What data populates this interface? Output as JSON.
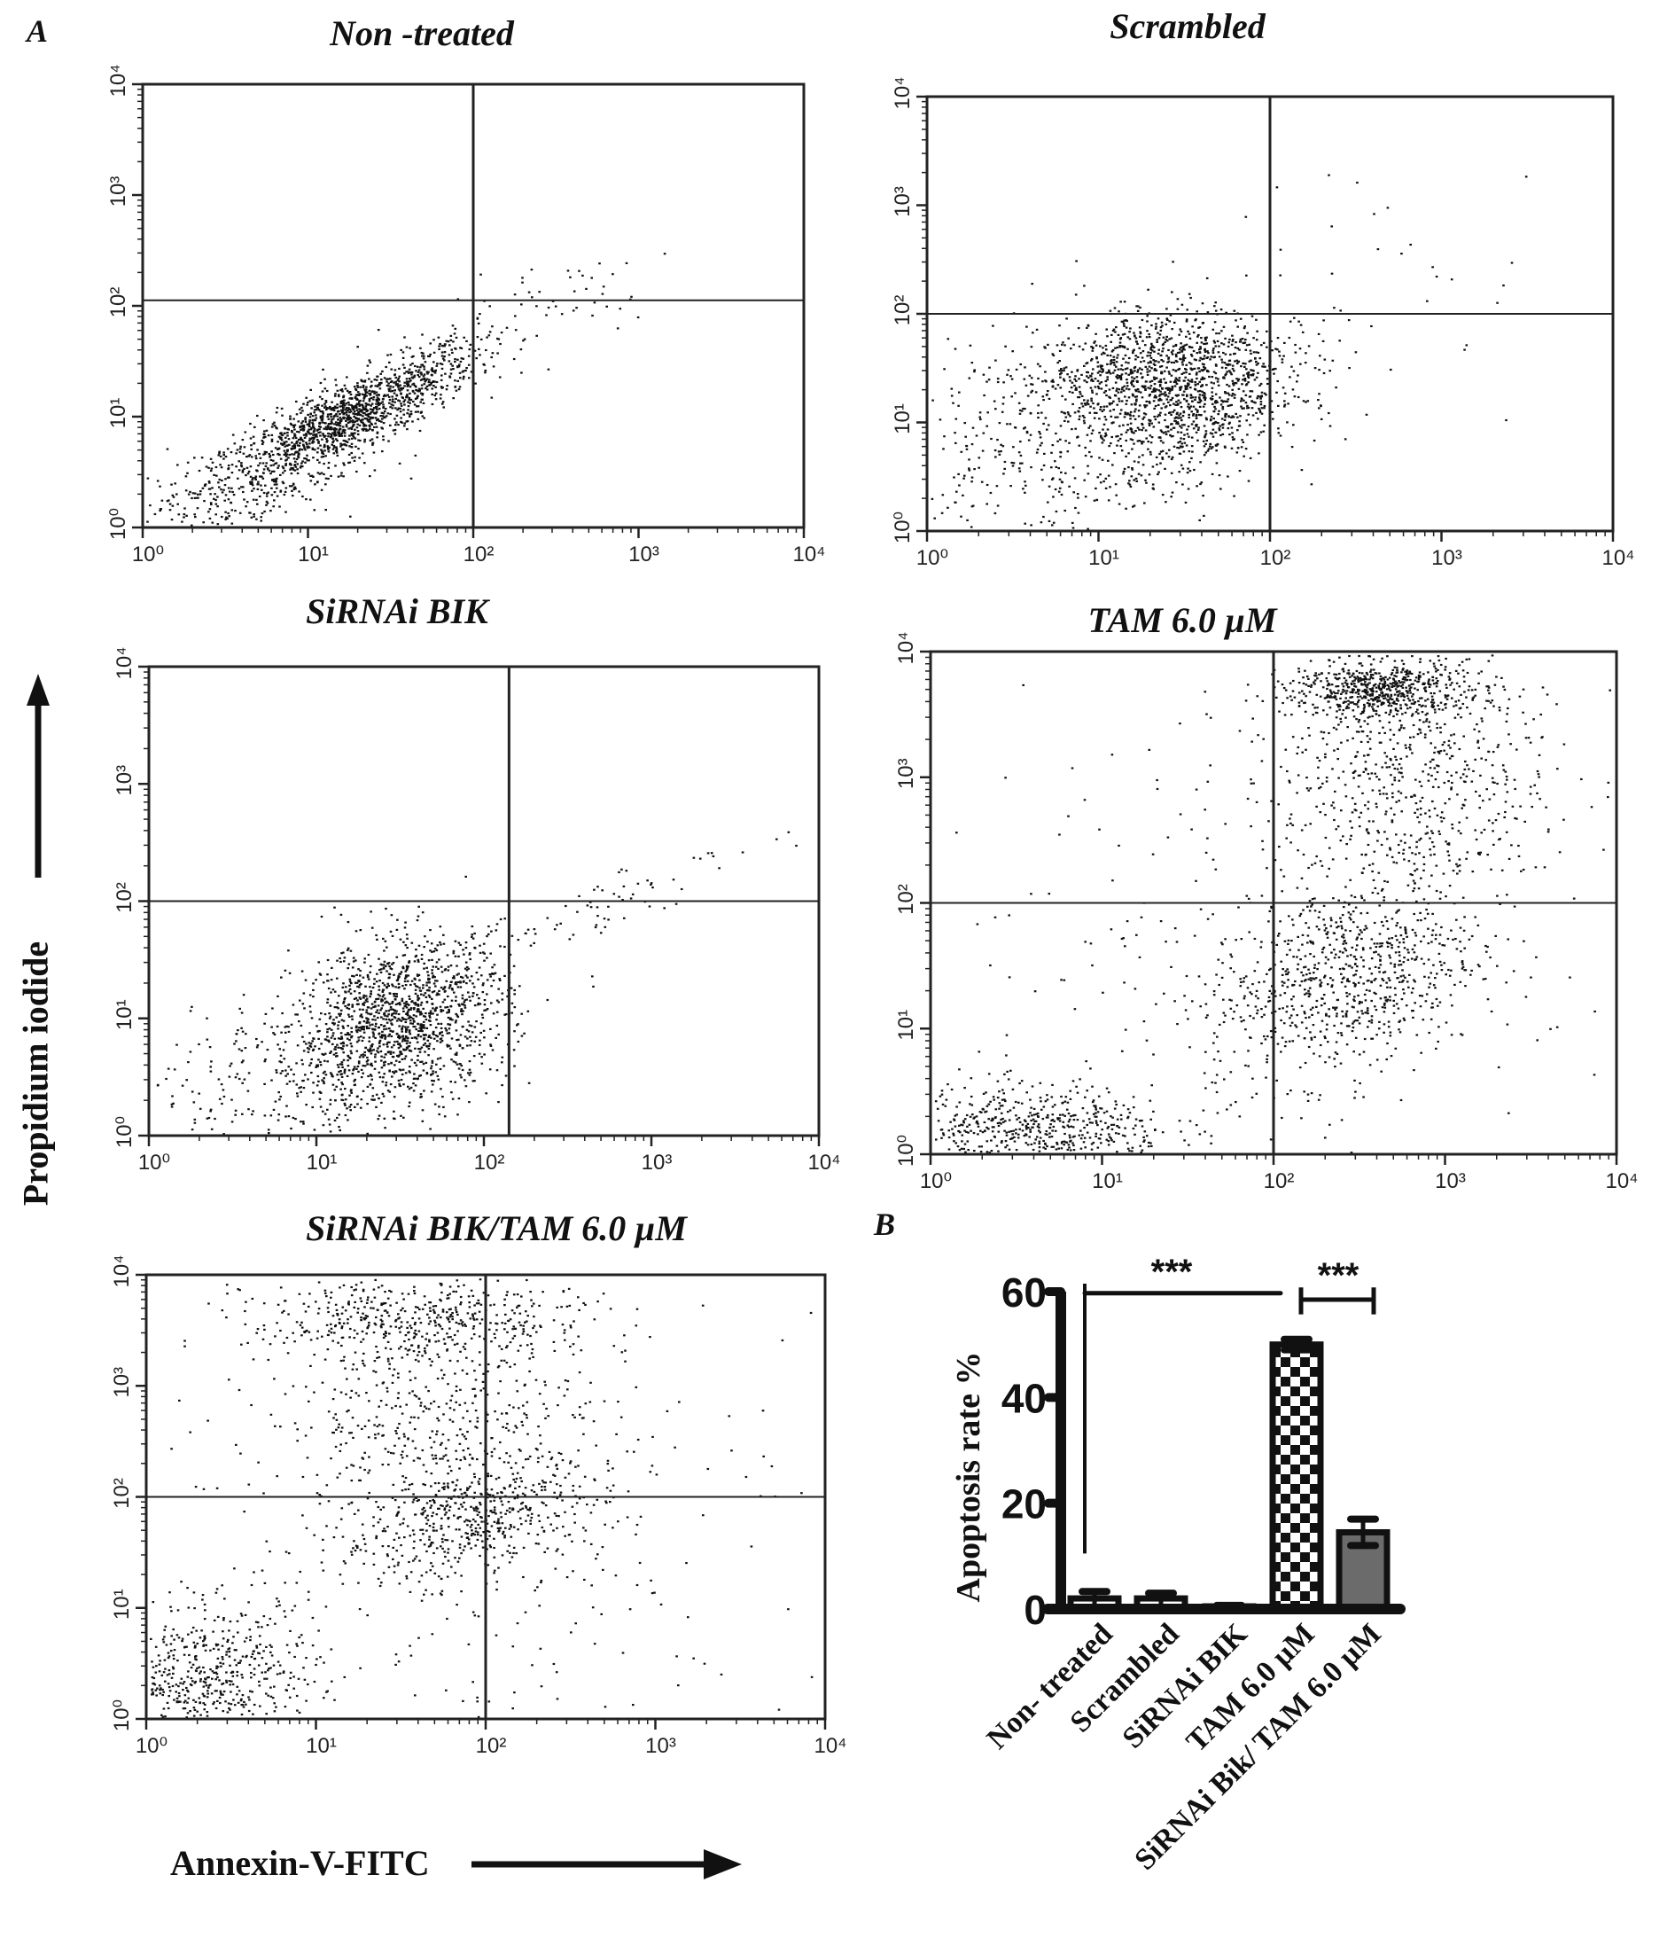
{
  "panel_labels": {
    "a": "A",
    "b": "B"
  },
  "axes": {
    "y_label": "Propidium iodide",
    "x_label": "Annexin-V-FITC"
  },
  "chart_data": [
    {
      "type": "scatter",
      "title": "Non -treated",
      "x_scale": "log",
      "y_scale": "log",
      "xlim": [
        1,
        10000
      ],
      "ylim": [
        1,
        10000
      ],
      "tick_labels": [
        "10⁰",
        "10¹",
        "10²",
        "10³",
        "10⁴"
      ],
      "gate": {
        "x_decade": 2.0,
        "y_decade": 2.05
      },
      "populations": [
        {
          "cx": 1.25,
          "cy": 1.0,
          "sx": 0.38,
          "sy": 0.32,
          "corr": 0.85,
          "n": 1400
        },
        {
          "cx": 0.5,
          "cy": 0.3,
          "sx": 0.4,
          "sy": 0.3,
          "corr": 0.5,
          "n": 300
        },
        {
          "cx": 2.3,
          "cy": 2.0,
          "sx": 0.5,
          "sy": 0.35,
          "corr": 0.7,
          "n": 60
        }
      ]
    },
    {
      "type": "scatter",
      "title": "Scrambled",
      "x_scale": "log",
      "y_scale": "log",
      "xlim": [
        1,
        10000
      ],
      "ylim": [
        1,
        10000
      ],
      "tick_labels": [
        "10⁰",
        "10¹",
        "10²",
        "10³",
        "10⁴"
      ],
      "gate": {
        "x_decade": 2.0,
        "y_decade": 2.0
      },
      "populations": [
        {
          "cx": 1.3,
          "cy": 1.5,
          "sx": 0.35,
          "sy": 0.28,
          "corr": 0.3,
          "n": 900
        },
        {
          "cx": 1.6,
          "cy": 1.05,
          "sx": 0.3,
          "sy": 0.3,
          "corr": 0.5,
          "n": 500
        },
        {
          "cx": 0.8,
          "cy": 0.8,
          "sx": 0.6,
          "sy": 0.55,
          "corr": 0.3,
          "n": 500
        },
        {
          "cx": 2.4,
          "cy": 2.2,
          "sx": 0.7,
          "sy": 0.6,
          "corr": 0.3,
          "n": 50
        }
      ]
    },
    {
      "type": "scatter",
      "title": "SiRNAi BIK",
      "x_scale": "log",
      "y_scale": "log",
      "xlim": [
        1,
        10000
      ],
      "ylim": [
        1,
        10000
      ],
      "tick_labels": [
        "10⁰",
        "10¹",
        "10²",
        "10³",
        "10⁴"
      ],
      "gate": {
        "x_decade": 2.15,
        "y_decade": 2.0
      },
      "populations": [
        {
          "cx": 1.5,
          "cy": 1.0,
          "sx": 0.32,
          "sy": 0.35,
          "corr": 0.2,
          "n": 1400
        },
        {
          "cx": 0.8,
          "cy": 0.4,
          "sx": 0.5,
          "sy": 0.35,
          "corr": 0.3,
          "n": 300
        },
        {
          "cx": 2.5,
          "cy": 1.9,
          "sx": 0.5,
          "sy": 0.3,
          "corr": 0.9,
          "n": 80
        }
      ]
    },
    {
      "type": "scatter",
      "title": "TAM  6.0 µM",
      "x_scale": "log",
      "y_scale": "log",
      "xlim": [
        1,
        10000
      ],
      "ylim": [
        1,
        10000
      ],
      "tick_labels": [
        "10⁰",
        "10¹",
        "10²",
        "10³",
        "10⁴"
      ],
      "gate": {
        "x_decade": 2.0,
        "y_decade": 2.0
      },
      "populations": [
        {
          "cx": 2.6,
          "cy": 3.7,
          "sx": 0.25,
          "sy": 0.12,
          "corr": 0,
          "n": 600
        },
        {
          "cx": 2.8,
          "cy": 3.0,
          "sx": 0.4,
          "sy": 0.55,
          "corr": 0,
          "n": 700
        },
        {
          "cx": 2.4,
          "cy": 1.4,
          "sx": 0.4,
          "sy": 0.4,
          "corr": 0.3,
          "n": 800
        },
        {
          "cx": 0.6,
          "cy": 0.2,
          "sx": 0.4,
          "sy": 0.18,
          "corr": 0,
          "n": 600
        },
        {
          "cx": 1.6,
          "cy": 1.6,
          "sx": 1.0,
          "sy": 1.0,
          "corr": 0,
          "n": 200
        }
      ]
    },
    {
      "type": "scatter",
      "title": "SiRNAi BIK/TAM 6.0 µM",
      "x_scale": "log",
      "y_scale": "log",
      "xlim": [
        1,
        10000
      ],
      "ylim": [
        1,
        10000
      ],
      "tick_labels": [
        "10⁰",
        "10¹",
        "10²",
        "10³",
        "10⁴"
      ],
      "gate": {
        "x_decade": 2.0,
        "y_decade": 2.0
      },
      "populations": [
        {
          "cx": 1.6,
          "cy": 3.6,
          "sx": 0.5,
          "sy": 0.2,
          "corr": 0,
          "n": 500
        },
        {
          "cx": 1.7,
          "cy": 2.7,
          "sx": 0.45,
          "sy": 0.45,
          "corr": 0,
          "n": 400
        },
        {
          "cx": 1.9,
          "cy": 1.8,
          "sx": 0.4,
          "sy": 0.28,
          "corr": 0.4,
          "n": 500
        },
        {
          "cx": 0.3,
          "cy": 0.3,
          "sx": 0.35,
          "sy": 0.35,
          "corr": 0.2,
          "n": 700
        },
        {
          "cx": 1.8,
          "cy": 1.8,
          "sx": 1.1,
          "sy": 1.1,
          "corr": 0,
          "n": 300
        }
      ]
    },
    {
      "type": "bar",
      "title": "",
      "ylabel": "Apoptosis rate %",
      "xlabel": "",
      "ylim": [
        0,
        60
      ],
      "yticks": [
        "0",
        "20",
        "40",
        "60"
      ],
      "categories": [
        "Non- treated",
        "Scrambled",
        "SiRNAi BIK",
        "TAM 6.0 µM",
        "SiRNAi Bik/ TAM 6.0 µM"
      ],
      "values": [
        2.0,
        2.0,
        0.5,
        50.0,
        14.5
      ],
      "errors": [
        1.3,
        1.0,
        0.2,
        1.0,
        2.5
      ],
      "fills": [
        "#ffffff",
        "#ffffff",
        "#ffffff",
        "checker",
        "#6b6b6b"
      ],
      "significance": [
        {
          "from": 0,
          "to": 3,
          "label": "***"
        },
        {
          "from": 3,
          "to": 4,
          "label": "***"
        }
      ]
    }
  ]
}
